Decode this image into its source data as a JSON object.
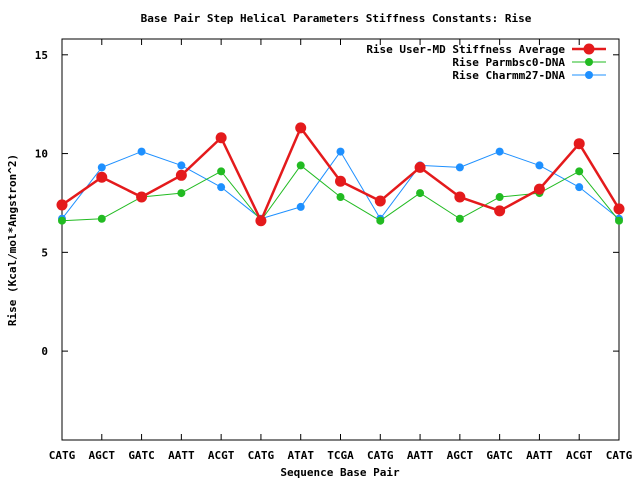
{
  "chart_data": {
    "type": "line",
    "title": "Base Pair Step Helical Parameters Stiffness Constants: Rise",
    "xlabel": "Sequence Base Pair",
    "ylabel": "Rise (Kcal/mol*Angstron^2)",
    "categories": [
      "CATG",
      "AGCT",
      "GATC",
      "AATT",
      "ACGT",
      "CATG",
      "ATAT",
      "TCGA",
      "CATG",
      "AATT",
      "AGCT",
      "GATC",
      "AATT",
      "ACGT",
      "CATG"
    ],
    "yticks": [
      0,
      5,
      10,
      15
    ],
    "ylim": [
      -4.5,
      15.8
    ],
    "grid": false,
    "legend_position": "top-right",
    "series": [
      {
        "name": "Rise User-MD Stiffness Average",
        "color": "#e41a1c",
        "marker": "circle-large",
        "line_width": 2.5,
        "values": [
          7.4,
          8.8,
          7.8,
          8.9,
          10.8,
          6.6,
          11.3,
          8.6,
          7.6,
          9.3,
          7.8,
          7.1,
          8.2,
          10.5,
          7.2
        ]
      },
      {
        "name": "Rise Parmbsc0-DNA",
        "color": "#22bb22",
        "marker": "circle",
        "line_width": 1,
        "values": [
          6.6,
          6.7,
          7.8,
          8.0,
          9.1,
          6.6,
          9.4,
          7.8,
          6.6,
          8.0,
          6.7,
          7.8,
          8.0,
          9.1,
          6.6
        ]
      },
      {
        "name": "Rise Charmm27-DNA",
        "color": "#1e90ff",
        "marker": "circle",
        "line_width": 1,
        "values": [
          6.7,
          9.3,
          10.1,
          9.4,
          8.3,
          6.7,
          7.3,
          10.1,
          6.7,
          9.4,
          9.3,
          10.1,
          9.4,
          8.3,
          6.7
        ]
      }
    ]
  }
}
